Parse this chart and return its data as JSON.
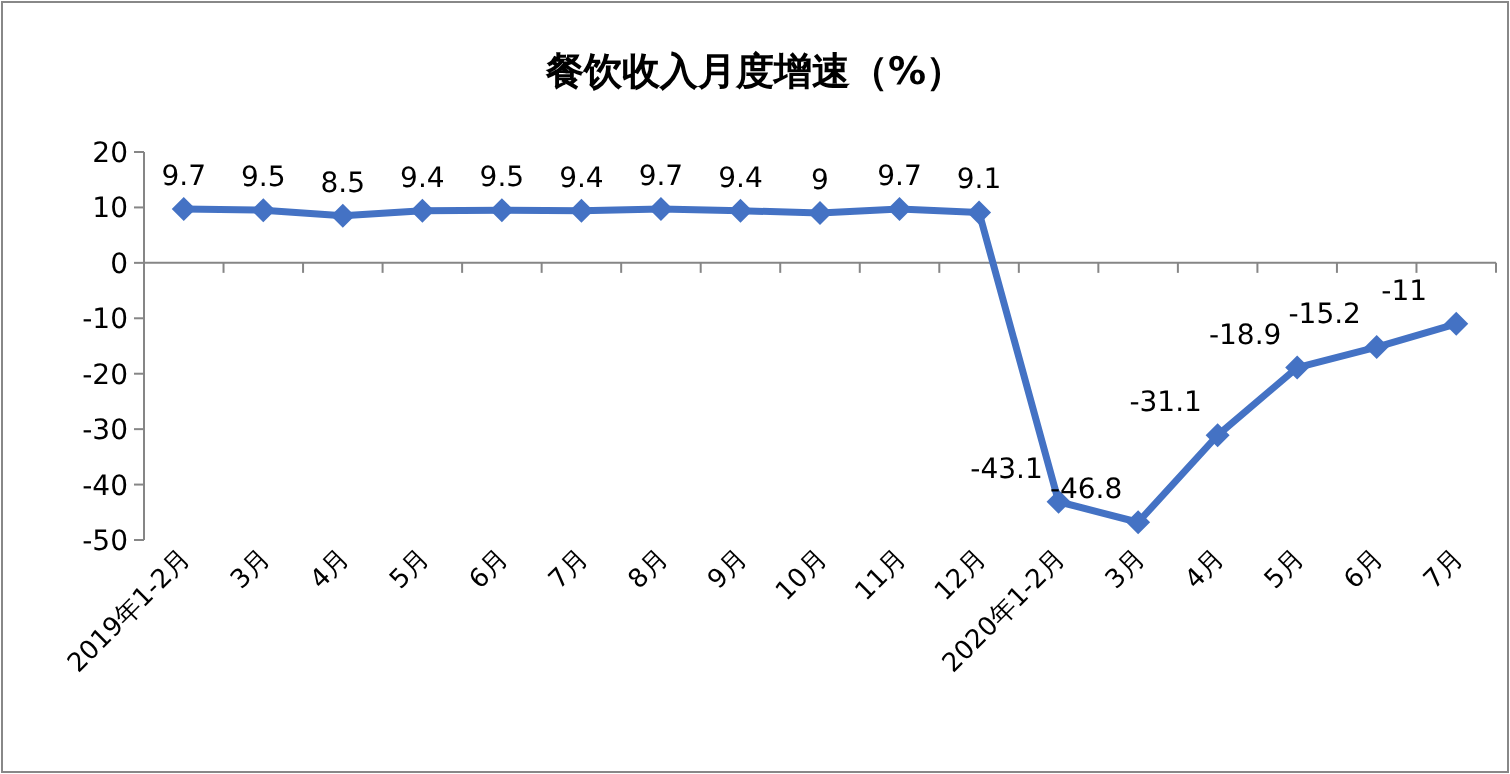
{
  "chart_data": {
    "type": "line",
    "title": "餐饮收入月度增速（%）",
    "categories": [
      "2019年1-2月",
      "3月",
      "4月",
      "5月",
      "6月",
      "7月",
      "8月",
      "9月",
      "10月",
      "11月",
      "12月",
      "2020年1-2月",
      "3月",
      "4月",
      "5月",
      "6月",
      "7月"
    ],
    "series": [
      {
        "color": "#4472c4",
        "values": [
          9.7,
          9.5,
          8.5,
          9.4,
          9.5,
          9.4,
          9.7,
          9.4,
          9,
          9.7,
          9.1,
          -43.1,
          -46.8,
          -31.1,
          -18.9,
          -15.2,
          -11
        ]
      }
    ],
    "ylim": [
      -50,
      20
    ],
    "yticks": [
      -50,
      -40,
      -30,
      -20,
      -10,
      0,
      10,
      20
    ],
    "marker": "diamond",
    "data_labels": true
  }
}
